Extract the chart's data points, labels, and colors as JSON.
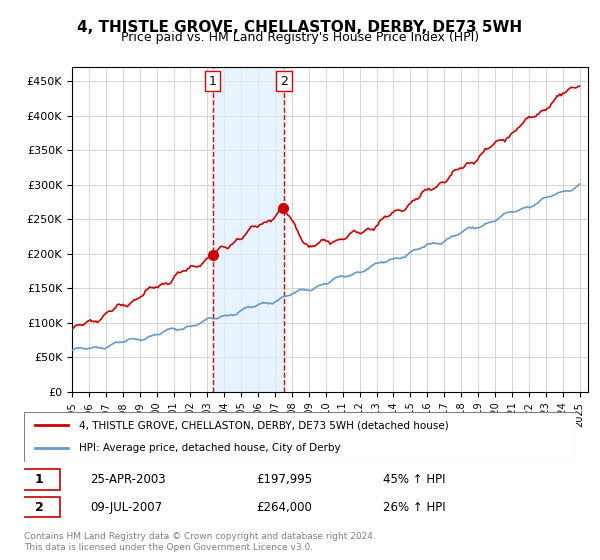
{
  "title": "4, THISTLE GROVE, CHELLASTON, DERBY, DE73 5WH",
  "subtitle": "Price paid vs. HM Land Registry's House Price Index (HPI)",
  "sale1_date": "25-APR-2003",
  "sale1_price": 197995,
  "sale1_label": "1",
  "sale1_hpi": "45% ↑ HPI",
  "sale2_date": "09-JUL-2007",
  "sale2_label": "2",
  "sale2_price": 264000,
  "sale2_hpi": "26% ↑ HPI",
  "legend_house": "4, THISTLE GROVE, CHELLASTON, DERBY, DE73 5WH (detached house)",
  "legend_hpi": "HPI: Average price, detached house, City of Derby",
  "footer": "Contains HM Land Registry data © Crown copyright and database right 2024.\nThis data is licensed under the Open Government Licence v3.0.",
  "house_color": "#cc0000",
  "hpi_color": "#6699cc",
  "shade_color": "#ddeeff",
  "vline_color": "#dd0000",
  "ylim_min": 0,
  "ylim_max": 470000,
  "sale1_year": 2003.32,
  "sale2_year": 2007.52
}
